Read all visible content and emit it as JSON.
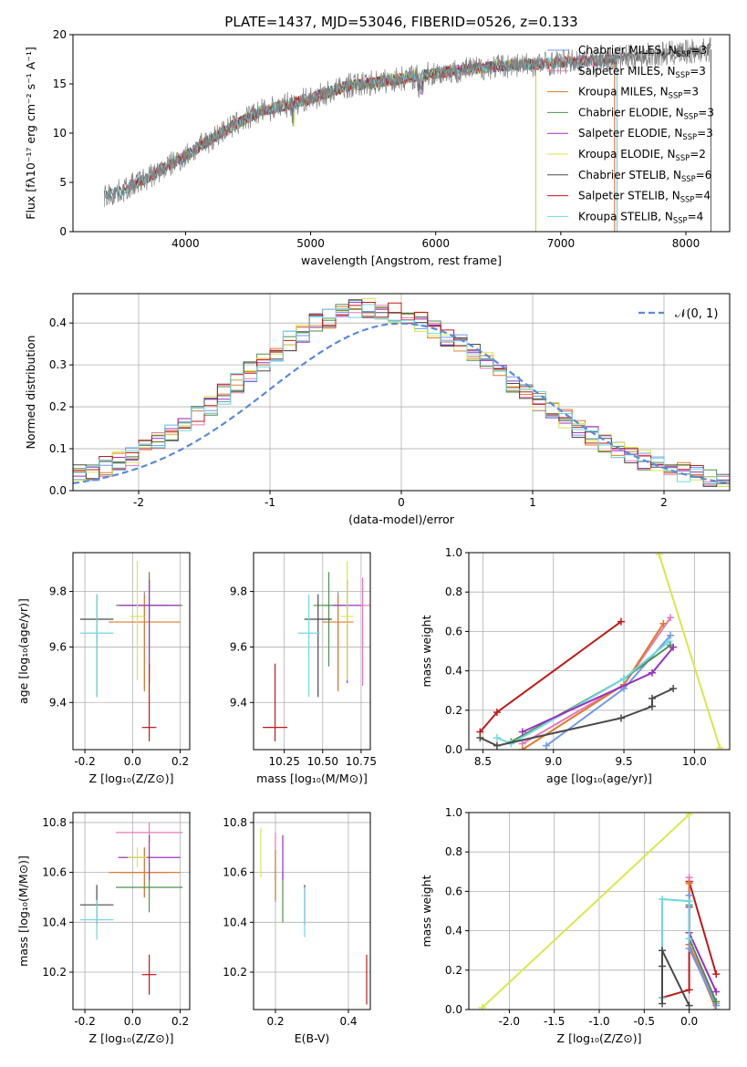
{
  "chart_data": [
    {
      "type": "line",
      "title": "PLATE=1437, MJD=53046, FIBERID=0526, z=0.133",
      "xlabel": "wavelength [Angstrom, rest frame]",
      "ylabel": "Flux [fλ10⁻¹⁷ erg cm⁻² s⁻¹ A⁻¹]",
      "xlim": [
        3100,
        8350
      ],
      "ylim": [
        0,
        20
      ],
      "xticks": [
        4000,
        5000,
        6000,
        7000,
        8000
      ],
      "yticks": [
        0,
        5,
        10,
        15,
        20
      ],
      "legend_placement": "upper-right",
      "data_anchor": {
        "x": [
          3350,
          3500,
          3700,
          4000,
          4300,
          4600,
          5000,
          5300,
          5600,
          5900,
          6200,
          6500,
          6800,
          7000,
          7300,
          7600,
          8000,
          8200
        ],
        "y": [
          3.6,
          4.2,
          5.5,
          7.7,
          10.2,
          12.2,
          13.5,
          14.8,
          15.3,
          15.9,
          16.4,
          16.8,
          17.0,
          17.2,
          17.4,
          17.8,
          18.2,
          18.5
        ]
      },
      "series": [
        {
          "name": "Chabrier MILES, N$_{SSP}$=3",
          "color": "#6f9ae8",
          "x0": 3540,
          "x1": 7430
        },
        {
          "name": "Salpeter MILES, N$_{SSP}$=3",
          "color": "#e878b8",
          "x0": 3540,
          "x1": 7430
        },
        {
          "name": "Kroupa MILES, N$_{SSP}$=3",
          "color": "#e07b2a",
          "x0": 3540,
          "x1": 7430
        },
        {
          "name": "Chabrier ELODIE, N$_{SSP}$=3",
          "color": "#4f8f4f",
          "x0": 3900,
          "x1": 6800
        },
        {
          "name": "Salpeter ELODIE, N$_{SSP}$=3",
          "color": "#9b30c0",
          "x0": 3900,
          "x1": 6800
        },
        {
          "name": "Kroupa ELODIE, N$_{SSP}$=2",
          "color": "#d8e84a",
          "x0": 3900,
          "x1": 6800
        },
        {
          "name": "Chabrier STELIB, N$_{SSP}$=6",
          "color": "#4a4a4a",
          "x0": 3350,
          "x1": 8200
        },
        {
          "name": "Salpeter STELIB, N$_{SSP}$=4",
          "color": "#c01818",
          "x0": 3500,
          "x1": 7450
        },
        {
          "name": "Kroupa STELIB, N$_{SSP}$=4",
          "color": "#6fd8e0",
          "x0": 3350,
          "x1": 7450
        }
      ],
      "observed_color": "#808080"
    },
    {
      "type": "line",
      "xlabel": "(data-model)/error",
      "ylabel": "Normed distribution",
      "xlim": [
        -2.5,
        2.5
      ],
      "ylim": [
        0,
        0.47
      ],
      "xticks": [
        -2,
        -1,
        0,
        1,
        2
      ],
      "yticks": [
        0.0,
        0.1,
        0.2,
        0.3,
        0.4
      ],
      "grid": true,
      "legend_placement": "upper-right",
      "gaussian_label": "𝒩(0, 1)",
      "gaussian_color": "#5b8ad8",
      "bin_width": 0.1,
      "histogram_colors": [
        "#6f9ae8",
        "#e878b8",
        "#e07b2a",
        "#4f8f4f",
        "#9b30c0",
        "#d8e84a",
        "#4a4a4a",
        "#c01818",
        "#6fd8e0"
      ]
    },
    {
      "type": "scatter",
      "xlabel": "Z [log₁₀(Z/Z⊙)]",
      "ylabel": "age  [log₁₀(age/yr)]",
      "xlim": [
        -0.25,
        0.24
      ],
      "ylim": [
        9.23,
        9.94
      ],
      "xticks": [
        -0.2,
        0.0,
        0.2
      ],
      "yticks": [
        9.4,
        9.6,
        9.8
      ],
      "grid": true,
      "points": [
        {
          "x": 0.05,
          "y": 9.75,
          "xerr": 0.1,
          "yerr_lo": 0.3,
          "yerr_hi": 0.05,
          "color": "#6f9ae8"
        },
        {
          "x": 0.07,
          "y": 9.75,
          "xerr": 0.12,
          "yerr_lo": 0.2,
          "yerr_hi": 0.1,
          "color": "#e878b8"
        },
        {
          "x": 0.05,
          "y": 9.69,
          "xerr": 0.15,
          "yerr_lo": 0.25,
          "yerr_hi": 0.1,
          "color": "#e07b2a"
        },
        {
          "x": 0.07,
          "y": 9.75,
          "xerr": 0.14,
          "yerr_lo": 0.22,
          "yerr_hi": 0.12,
          "color": "#4f8f4f"
        },
        {
          "x": 0.07,
          "y": 9.75,
          "xerr": 0.13,
          "yerr_lo": 0.28,
          "yerr_hi": 0.09,
          "color": "#9b30c0"
        },
        {
          "x": 0.02,
          "y": 9.71,
          "xerr": 0.03,
          "yerr_lo": 0.23,
          "yerr_hi": 0.2,
          "color": "#d8e84a"
        },
        {
          "x": -0.15,
          "y": 9.7,
          "xerr": 0.07,
          "yerr_lo": 0.28,
          "yerr_hi": 0.09,
          "color": "#4a4a4a"
        },
        {
          "x": 0.07,
          "y": 9.31,
          "xerr": 0.03,
          "yerr_lo": 0.05,
          "yerr_hi": 0.23,
          "color": "#c01818"
        },
        {
          "x": -0.15,
          "y": 9.65,
          "xerr": 0.07,
          "yerr_lo": 0.23,
          "yerr_hi": 0.14,
          "color": "#6fd8e0"
        }
      ]
    },
    {
      "type": "scatter",
      "xlabel": "mass [log₁₀(M/M⊙)]",
      "xlim": [
        10.05,
        10.81
      ],
      "ylim": [
        9.23,
        9.94
      ],
      "xticks": [
        10.25,
        10.5,
        10.75
      ],
      "yticks": [
        9.4,
        9.6,
        9.8
      ],
      "grid": true,
      "points": [
        {
          "x": 10.6,
          "y": 9.75,
          "xerr": 0.1,
          "yerr_lo": 0.3,
          "yerr_hi": 0.05,
          "color": "#6f9ae8"
        },
        {
          "x": 10.76,
          "y": 9.75,
          "xerr": 0.05,
          "yerr_lo": 0.29,
          "yerr_hi": 0.1,
          "color": "#e878b8"
        },
        {
          "x": 10.6,
          "y": 9.69,
          "xerr": 0.1,
          "yerr_lo": 0.25,
          "yerr_hi": 0.1,
          "color": "#e07b2a"
        },
        {
          "x": 10.54,
          "y": 9.75,
          "xerr": 0.1,
          "yerr_lo": 0.22,
          "yerr_hi": 0.12,
          "color": "#4f8f4f"
        },
        {
          "x": 10.66,
          "y": 9.75,
          "xerr": 0.09,
          "yerr_lo": 0.28,
          "yerr_hi": 0.09,
          "color": "#9b30c0"
        },
        {
          "x": 10.66,
          "y": 9.71,
          "xerr": 0.04,
          "yerr_lo": 0.23,
          "yerr_hi": 0.2,
          "color": "#d8e84a"
        },
        {
          "x": 10.47,
          "y": 9.7,
          "xerr": 0.09,
          "yerr_lo": 0.28,
          "yerr_hi": 0.09,
          "color": "#4a4a4a"
        },
        {
          "x": 10.19,
          "y": 9.31,
          "xerr": 0.08,
          "yerr_lo": 0.05,
          "yerr_hi": 0.23,
          "color": "#c01818"
        },
        {
          "x": 10.41,
          "y": 9.65,
          "xerr": 0.07,
          "yerr_lo": 0.23,
          "yerr_hi": 0.14,
          "color": "#6fd8e0"
        }
      ]
    },
    {
      "type": "line",
      "xlabel": "age  [log₁₀(age/yr)]",
      "ylabel": "mass weight",
      "xlim": [
        8.4,
        10.25
      ],
      "ylim": [
        0,
        1.0
      ],
      "xticks": [
        8.5,
        9.0,
        9.5,
        10.0
      ],
      "yticks": [
        0.0,
        0.2,
        0.4,
        0.6,
        0.8,
        1.0
      ],
      "grid": true,
      "series": [
        {
          "color": "#d8e84a",
          "x": [
            9.75,
            10.18
          ],
          "y": [
            0.99,
            0.01
          ]
        },
        {
          "color": "#c01818",
          "x": [
            8.48,
            8.6,
            9.48
          ],
          "y": [
            0.09,
            0.19,
            0.65
          ]
        },
        {
          "color": "#e878b8",
          "x": [
            8.78,
            9.5,
            9.83
          ],
          "y": [
            0.03,
            0.33,
            0.67
          ]
        },
        {
          "color": "#e07b2a",
          "x": [
            8.78,
            9.5,
            9.78
          ],
          "y": [
            0.0,
            0.33,
            0.64
          ]
        },
        {
          "color": "#6f9ae8",
          "x": [
            8.95,
            9.5,
            9.83
          ],
          "y": [
            0.02,
            0.31,
            0.58
          ]
        },
        {
          "color": "#4f8f4f",
          "x": [
            8.7,
            9.5,
            9.83
          ],
          "y": [
            0.04,
            0.36,
            0.53
          ]
        },
        {
          "color": "#6fd8e0",
          "x": [
            8.6,
            8.7,
            9.5,
            9.82
          ],
          "y": [
            0.06,
            0.03,
            0.36,
            0.55
          ]
        },
        {
          "color": "#9b30c0",
          "x": [
            8.78,
            9.7,
            9.85
          ],
          "y": [
            0.09,
            0.39,
            0.52
          ]
        },
        {
          "color": "#4a4a4a",
          "x": [
            8.48,
            8.6,
            9.48,
            9.7,
            9.7,
            9.85
          ],
          "y": [
            0.06,
            0.02,
            0.16,
            0.22,
            0.26,
            0.31
          ]
        }
      ]
    },
    {
      "type": "scatter",
      "xlabel": "Z [log₁₀(Z/Z⊙)]",
      "ylabel": "mass [log₁₀(M/M⊙)]",
      "xlim": [
        -0.25,
        0.24
      ],
      "ylim": [
        10.05,
        10.84
      ],
      "xticks": [
        -0.2,
        0.0,
        0.2
      ],
      "yticks": [
        10.2,
        10.4,
        10.6,
        10.8
      ],
      "grid": true,
      "points": [
        {
          "x": 0.05,
          "y": 10.6,
          "xerr": 0.1,
          "yerr": 0.1,
          "color": "#6f9ae8"
        },
        {
          "x": 0.07,
          "y": 10.76,
          "xerr": 0.14,
          "yerr": 0.04,
          "color": "#e878b8"
        },
        {
          "x": 0.05,
          "y": 10.6,
          "xerr": 0.15,
          "yerr": 0.1,
          "color": "#e07b2a"
        },
        {
          "x": 0.07,
          "y": 10.54,
          "xerr": 0.14,
          "yerr": 0.1,
          "color": "#4f8f4f"
        },
        {
          "x": 0.07,
          "y": 10.66,
          "xerr": 0.13,
          "yerr": 0.09,
          "color": "#9b30c0"
        },
        {
          "x": 0.02,
          "y": 10.66,
          "xerr": 0.04,
          "yerr": 0.04,
          "color": "#d8e84a"
        },
        {
          "x": -0.15,
          "y": 10.47,
          "xerr": 0.07,
          "yerr": 0.08,
          "color": "#4a4a4a"
        },
        {
          "x": 0.07,
          "y": 10.19,
          "xerr": 0.03,
          "yerr": 0.08,
          "color": "#c01818"
        },
        {
          "x": -0.15,
          "y": 10.41,
          "xerr": 0.07,
          "yerr": 0.08,
          "color": "#6fd8e0"
        }
      ]
    },
    {
      "type": "scatter",
      "xlabel": "E(B-V)",
      "xlim": [
        0.14,
        0.46
      ],
      "ylim": [
        10.05,
        10.84
      ],
      "xticks": [
        0.2,
        0.4
      ],
      "yticks": [
        10.2,
        10.4,
        10.6,
        10.8
      ],
      "grid": true,
      "points": [
        {
          "x": 0.2,
          "y": 10.58,
          "yerr": 0.1,
          "color": "#6f9ae8"
        },
        {
          "x": 0.2,
          "y": 10.72,
          "yerr": 0.04,
          "color": "#e878b8"
        },
        {
          "x": 0.2,
          "y": 10.59,
          "yerr": 0.1,
          "color": "#e07b2a"
        },
        {
          "x": 0.22,
          "y": 10.5,
          "yerr": 0.1,
          "color": "#4f8f4f"
        },
        {
          "x": 0.22,
          "y": 10.66,
          "yerr": 0.09,
          "color": "#9b30c0"
        },
        {
          "x": 0.16,
          "y": 10.68,
          "yerr": 0.1,
          "color": "#d8e84a"
        },
        {
          "x": 0.28,
          "y": 10.47,
          "yerr": 0.08,
          "color": "#4a4a4a"
        },
        {
          "x": 0.45,
          "y": 10.17,
          "yerr": 0.1,
          "color": "#c01818"
        },
        {
          "x": 0.28,
          "y": 10.44,
          "yerr": 0.1,
          "color": "#6fd8e0"
        }
      ]
    },
    {
      "type": "line",
      "xlabel": "Z [log₁₀(Z/Z⊙)]",
      "ylabel": "mass weight",
      "xlim": [
        -2.45,
        0.45
      ],
      "ylim": [
        0,
        1.0
      ],
      "xticks": [
        -2.0,
        -1.5,
        -1.0,
        -0.5,
        0.0
      ],
      "yticks": [
        0.0,
        0.2,
        0.4,
        0.6,
        0.8,
        1.0
      ],
      "grid": true,
      "series": [
        {
          "color": "#d8e84a",
          "x": [
            -2.3,
            0.0
          ],
          "y": [
            0.01,
            0.99
          ]
        },
        {
          "color": "#c01818",
          "x": [
            -0.3,
            0.0,
            0.0,
            0.0,
            0.3
          ],
          "y": [
            0.06,
            0.1,
            0.65,
            0.65,
            0.18
          ]
        },
        {
          "color": "#e878b8",
          "x": [
            0.0,
            0.0,
            0.3
          ],
          "y": [
            0.67,
            0.33,
            0.03
          ]
        },
        {
          "color": "#e07b2a",
          "x": [
            0.0,
            0.0,
            0.3
          ],
          "y": [
            0.64,
            0.33,
            0.0
          ]
        },
        {
          "color": "#6f9ae8",
          "x": [
            0.0,
            0.0,
            0.3
          ],
          "y": [
            0.58,
            0.31,
            0.02
          ]
        },
        {
          "color": "#4f8f4f",
          "x": [
            0.0,
            0.0,
            0.3
          ],
          "y": [
            0.53,
            0.36,
            0.04
          ]
        },
        {
          "color": "#9b30c0",
          "x": [
            0.0,
            0.0,
            0.3
          ],
          "y": [
            0.52,
            0.39,
            0.09
          ]
        },
        {
          "color": "#6fd8e0",
          "x": [
            -0.3,
            -0.3,
            0.0,
            0.0
          ],
          "y": [
            0.06,
            0.56,
            0.55,
            0.36
          ]
        },
        {
          "color": "#4a4a4a",
          "x": [
            -0.3,
            -0.3,
            -0.3,
            0.0
          ],
          "y": [
            0.03,
            0.22,
            0.3,
            0.02
          ]
        }
      ]
    }
  ]
}
